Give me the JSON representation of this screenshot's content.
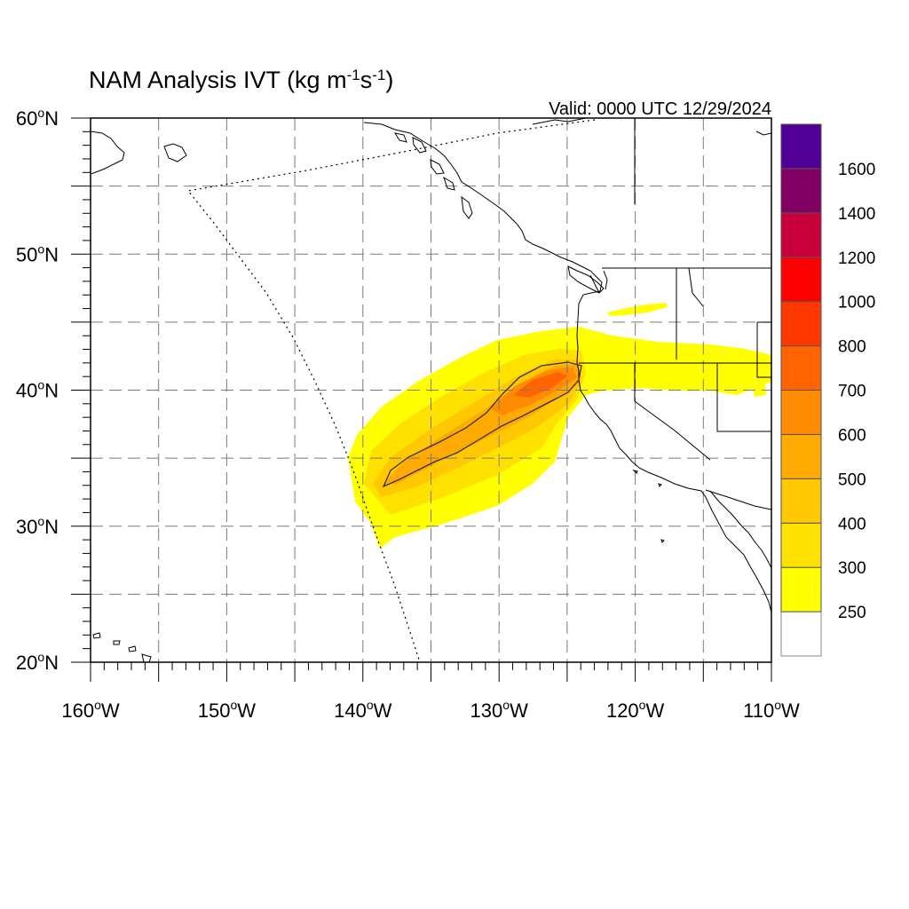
{
  "title": {
    "main": "NAM Analysis IVT (kg m",
    "exp1": "-1",
    "mid": "s",
    "exp2": "-1",
    "close": ")"
  },
  "valid_label": "Valid: 0000 UTC 12/29/2024",
  "map": {
    "lon_range": [
      -160,
      -110
    ],
    "lat_range": [
      20,
      60
    ],
    "lon_tick_labels": [
      {
        "lon": -160,
        "num": "160",
        "hem": "W"
      },
      {
        "lon": -150,
        "num": "150",
        "hem": "W"
      },
      {
        "lon": -140,
        "num": "140",
        "hem": "W"
      },
      {
        "lon": -130,
        "num": "130",
        "hem": "W"
      },
      {
        "lon": -120,
        "num": "120",
        "hem": "W"
      },
      {
        "lon": -110,
        "num": "110",
        "hem": "W"
      }
    ],
    "lat_tick_labels": [
      {
        "lat": 60,
        "num": "60",
        "hem": "N"
      },
      {
        "lat": 50,
        "num": "50",
        "hem": "N"
      },
      {
        "lat": 40,
        "num": "40",
        "hem": "N"
      },
      {
        "lat": 30,
        "num": "30",
        "hem": "N"
      },
      {
        "lat": 20,
        "num": "20",
        "hem": "N"
      }
    ],
    "grid": true
  },
  "colorbar": {
    "labels": [
      "250",
      "300",
      "400",
      "500",
      "600",
      "700",
      "800",
      "1000",
      "1200",
      "1400",
      "1600"
    ],
    "colors": [
      "#ffffff",
      "#ffff00",
      "#ffe100",
      "#ffc800",
      "#ffaa00",
      "#ff8c00",
      "#ff6400",
      "#ff3700",
      "#ff0000",
      "#c8003c",
      "#820064",
      "#500096"
    ]
  }
}
